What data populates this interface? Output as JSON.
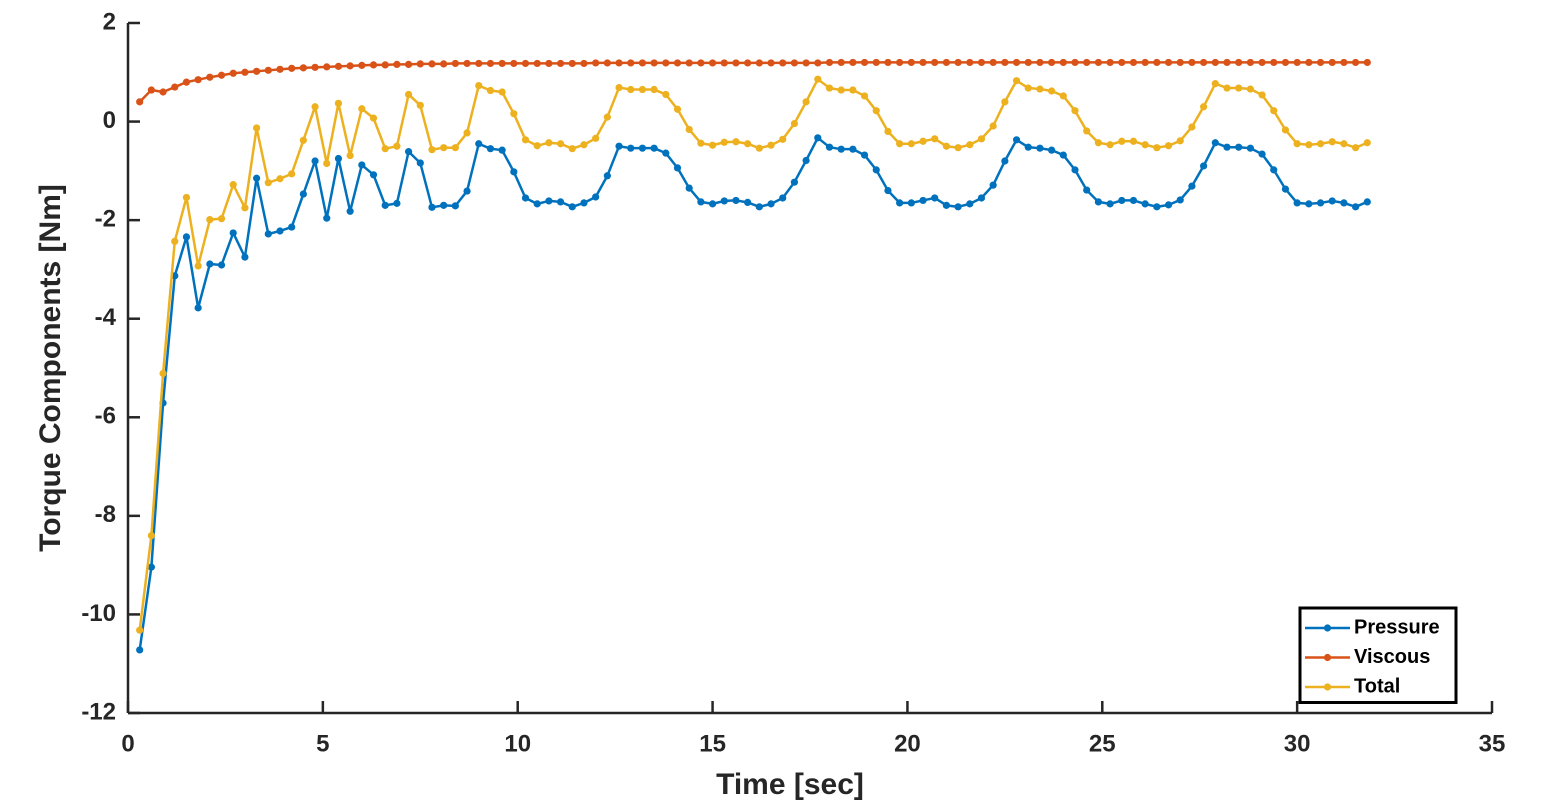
{
  "chart_data": {
    "type": "line",
    "xlabel": "Time [sec]",
    "ylabel": "Torque Components [Nm]",
    "xlim": [
      0,
      35
    ],
    "xticks": [
      0,
      5,
      10,
      15,
      20,
      25,
      30,
      35
    ],
    "ylim": [
      -12,
      2
    ],
    "yticks": [
      -12,
      -10,
      -8,
      -6,
      -4,
      -2,
      0,
      2
    ],
    "grid": false,
    "legend": "southeast",
    "markers": true,
    "x": [
      0.3,
      0.6,
      0.9,
      1.2,
      1.5,
      1.8,
      2.1,
      2.4,
      2.7,
      3.0,
      3.3,
      3.6,
      3.9,
      4.2,
      4.5,
      4.8,
      5.1,
      5.4,
      5.7,
      6.0,
      6.3,
      6.6,
      6.9,
      7.2,
      7.5,
      7.8,
      8.1,
      8.4,
      8.7,
      9.0,
      9.3,
      9.6,
      9.9,
      10.2,
      10.5,
      10.8,
      11.1,
      11.4,
      11.7,
      12.0,
      12.3,
      12.6,
      12.9,
      13.2,
      13.5,
      13.8,
      14.1,
      14.4,
      14.7,
      15.0,
      15.3,
      15.6,
      15.9,
      16.2,
      16.5,
      16.8,
      17.1,
      17.4,
      17.7,
      18.0,
      18.3,
      18.6,
      18.9,
      19.2,
      19.5,
      19.8,
      20.1,
      20.4,
      20.7,
      21.0,
      21.3,
      21.6,
      21.9,
      22.2,
      22.5,
      22.8,
      23.1,
      23.4,
      23.7,
      24.0,
      24.3,
      24.6,
      24.9,
      25.2,
      25.5,
      25.8,
      26.1,
      26.4,
      26.7,
      27.0,
      27.3,
      27.6,
      27.9,
      28.2,
      28.5,
      28.8,
      29.1,
      29.4,
      29.7,
      30.0,
      30.3,
      30.6,
      30.9,
      31.2,
      31.5,
      31.8
    ],
    "series": [
      {
        "name": "Pressure",
        "color": "#0072BD",
        "values": [
          -10.72,
          -9.04,
          -5.71,
          -3.13,
          -2.34,
          -3.78,
          -2.89,
          -2.91,
          -2.26,
          -2.75,
          -1.15,
          -2.28,
          -2.22,
          -2.14,
          -1.47,
          -0.8,
          -1.96,
          -0.75,
          -1.82,
          -0.88,
          -1.08,
          -1.7,
          -1.66,
          -0.61,
          -0.84,
          -1.74,
          -1.7,
          -1.71,
          -1.41,
          -0.45,
          -0.55,
          -0.58,
          -1.02,
          -1.55,
          -1.67,
          -1.61,
          -1.63,
          -1.73,
          -1.65,
          -1.53,
          -1.1,
          -0.5,
          -0.54,
          -0.54,
          -0.54,
          -0.64,
          -0.94,
          -1.35,
          -1.63,
          -1.67,
          -1.61,
          -1.6,
          -1.64,
          -1.73,
          -1.67,
          -1.55,
          -1.23,
          -0.79,
          -0.33,
          -0.52,
          -0.56,
          -0.56,
          -0.68,
          -0.98,
          -1.4,
          -1.65,
          -1.65,
          -1.6,
          -1.55,
          -1.7,
          -1.73,
          -1.67,
          -1.55,
          -1.29,
          -0.8,
          -0.37,
          -0.52,
          -0.54,
          -0.58,
          -0.68,
          -0.98,
          -1.39,
          -1.63,
          -1.67,
          -1.6,
          -1.6,
          -1.67,
          -1.73,
          -1.69,
          -1.59,
          -1.31,
          -0.9,
          -0.43,
          -0.52,
          -0.52,
          -0.54,
          -0.66,
          -0.98,
          -1.37,
          -1.65,
          -1.67,
          -1.65,
          -1.61,
          -1.65,
          -1.73,
          -1.63
        ]
      },
      {
        "name": "Viscous",
        "color": "#D95319",
        "values": [
          0.4,
          0.64,
          0.6,
          0.7,
          0.8,
          0.85,
          0.9,
          0.94,
          0.98,
          1.0,
          1.02,
          1.04,
          1.06,
          1.08,
          1.09,
          1.1,
          1.11,
          1.12,
          1.13,
          1.14,
          1.15,
          1.15,
          1.16,
          1.16,
          1.17,
          1.17,
          1.17,
          1.18,
          1.18,
          1.18,
          1.18,
          1.18,
          1.18,
          1.18,
          1.18,
          1.18,
          1.18,
          1.18,
          1.18,
          1.19,
          1.19,
          1.19,
          1.19,
          1.19,
          1.19,
          1.19,
          1.19,
          1.19,
          1.19,
          1.19,
          1.19,
          1.19,
          1.19,
          1.19,
          1.19,
          1.19,
          1.19,
          1.19,
          1.19,
          1.2,
          1.2,
          1.2,
          1.2,
          1.2,
          1.2,
          1.2,
          1.2,
          1.2,
          1.2,
          1.2,
          1.2,
          1.2,
          1.2,
          1.2,
          1.2,
          1.2,
          1.2,
          1.2,
          1.2,
          1.2,
          1.2,
          1.2,
          1.2,
          1.2,
          1.2,
          1.2,
          1.2,
          1.2,
          1.2,
          1.2,
          1.2,
          1.2,
          1.2,
          1.2,
          1.2,
          1.2,
          1.2,
          1.2,
          1.2,
          1.2,
          1.2,
          1.2,
          1.2,
          1.2,
          1.2,
          1.2
        ]
      },
      {
        "name": "Total",
        "color": "#EDB120",
        "values": [
          -10.32,
          -8.4,
          -5.11,
          -2.43,
          -1.54,
          -2.93,
          -1.99,
          -1.97,
          -1.28,
          -1.75,
          -0.13,
          -1.24,
          -1.16,
          -1.06,
          -0.38,
          0.3,
          -0.85,
          0.37,
          -0.69,
          0.26,
          0.07,
          -0.55,
          -0.5,
          0.55,
          0.33,
          -0.57,
          -0.53,
          -0.53,
          -0.23,
          0.73,
          0.63,
          0.6,
          0.16,
          -0.37,
          -0.49,
          -0.43,
          -0.45,
          -0.55,
          -0.47,
          -0.34,
          0.09,
          0.69,
          0.65,
          0.65,
          0.65,
          0.55,
          0.25,
          -0.16,
          -0.44,
          -0.48,
          -0.42,
          -0.41,
          -0.45,
          -0.54,
          -0.48,
          -0.36,
          -0.04,
          0.4,
          0.86,
          0.68,
          0.64,
          0.64,
          0.52,
          0.22,
          -0.2,
          -0.45,
          -0.45,
          -0.4,
          -0.35,
          -0.5,
          -0.53,
          -0.47,
          -0.35,
          -0.09,
          0.4,
          0.83,
          0.68,
          0.66,
          0.62,
          0.52,
          0.22,
          -0.19,
          -0.43,
          -0.47,
          -0.4,
          -0.4,
          -0.47,
          -0.53,
          -0.49,
          -0.39,
          -0.11,
          0.3,
          0.77,
          0.68,
          0.68,
          0.66,
          0.54,
          0.22,
          -0.17,
          -0.45,
          -0.47,
          -0.45,
          -0.41,
          -0.45,
          -0.53,
          -0.43
        ]
      }
    ]
  }
}
